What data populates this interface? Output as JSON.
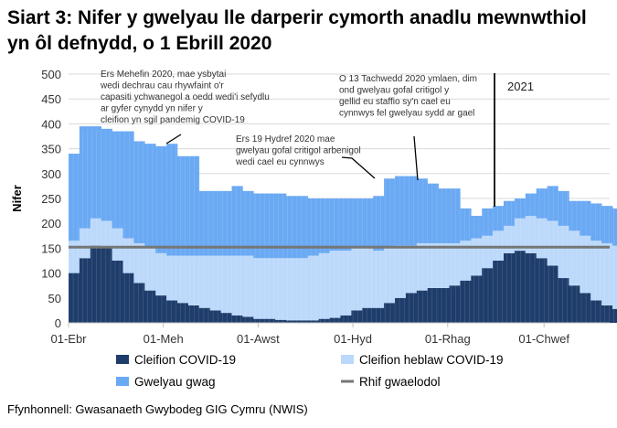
{
  "title": "Siart 3: Nifer y gwelyau lle darperir cymorth anadlu mewnwthiol yn ôl defnydd, o 1 Ebrill 2020",
  "source": "Ffynhonnell: Gwasanaeth Gwybodeg GIG Cymru (NWIS)",
  "chart_data": {
    "type": "bar",
    "stacked": true,
    "title": "Siart 3: Nifer y gwelyau lle darperir cymorth anadlu mewnwthiol yn ôl defnydd, o 1 Ebrill 2020",
    "ylabel": "Nifer",
    "xlabel": "",
    "ylim": [
      0,
      500
    ],
    "yticks": [
      "0",
      "50",
      "100",
      "150",
      "200",
      "250",
      "300",
      "350",
      "400",
      "450",
      "500"
    ],
    "xticks": [
      {
        "label": "01-Ebr",
        "day": 0
      },
      {
        "label": "01-Meh",
        "day": 61
      },
      {
        "label": "01-Awst",
        "day": 122
      },
      {
        "label": "01-Hyd",
        "day": 183
      },
      {
        "label": "01-Rhag",
        "day": 244
      },
      {
        "label": "01-Chwef",
        "day": 306
      }
    ],
    "x_unit": "weeks from 1 April 2020",
    "series": [
      {
        "name": "Cleifion COVID-19",
        "color": "#1f3d6b",
        "values": [
          100,
          130,
          155,
          150,
          125,
          100,
          80,
          65,
          55,
          45,
          40,
          35,
          30,
          25,
          20,
          15,
          12,
          8,
          8,
          6,
          5,
          5,
          5,
          8,
          10,
          15,
          25,
          30,
          30,
          40,
          50,
          60,
          65,
          70,
          70,
          75,
          85,
          95,
          110,
          125,
          140,
          145,
          140,
          130,
          115,
          90,
          75,
          60,
          45,
          35,
          28
        ]
      },
      {
        "name": "Cleifion heblaw COVID-19",
        "color": "#bcd9fb",
        "values": [
          65,
          60,
          55,
          55,
          65,
          70,
          80,
          85,
          85,
          90,
          95,
          100,
          105,
          110,
          115,
          120,
          123,
          122,
          122,
          124,
          125,
          125,
          130,
          132,
          135,
          130,
          125,
          120,
          115,
          110,
          105,
          95,
          95,
          90,
          90,
          85,
          80,
          75,
          65,
          60,
          55,
          65,
          75,
          80,
          90,
          105,
          110,
          115,
          120,
          125,
          127
        ]
      },
      {
        "name": "Gwelyau gwag",
        "color": "#6aa9f3",
        "values": [
          175,
          205,
          185,
          185,
          195,
          215,
          205,
          210,
          215,
          225,
          200,
          200,
          130,
          130,
          130,
          140,
          130,
          130,
          130,
          130,
          125,
          125,
          115,
          110,
          105,
          105,
          100,
          100,
          110,
          140,
          140,
          140,
          130,
          120,
          110,
          110,
          65,
          45,
          55,
          50,
          50,
          40,
          45,
          60,
          70,
          70,
          60,
          70,
          75,
          75,
          75
        ]
      }
    ],
    "baseline": {
      "name": "Rhif gwaelodol",
      "value": 152,
      "color": "#767676"
    },
    "year_marker": {
      "label": "2021",
      "day": 275
    },
    "annotations": [
      "Ers Mehefin 2020, mae ysbytai wedi dechrau cau rhywfaint o'r capasiti ychwanegol a oedd wedi'i sefydlu ar gyfer cynydd yn nifer y cleifion yn sgil pandemig COVID-19",
      "Ers 19 Hydref 2020 mae gwelyau gofal critigol arbenigol wedi cael eu cynnwys",
      "O 13 Tachwedd 2020 ymlaen, dim ond gwelyau gofal critigol y gellid eu staffio sy'n cael eu cynnwys fel gwelyau sydd ar gael"
    ],
    "legend_position": "bottom"
  }
}
